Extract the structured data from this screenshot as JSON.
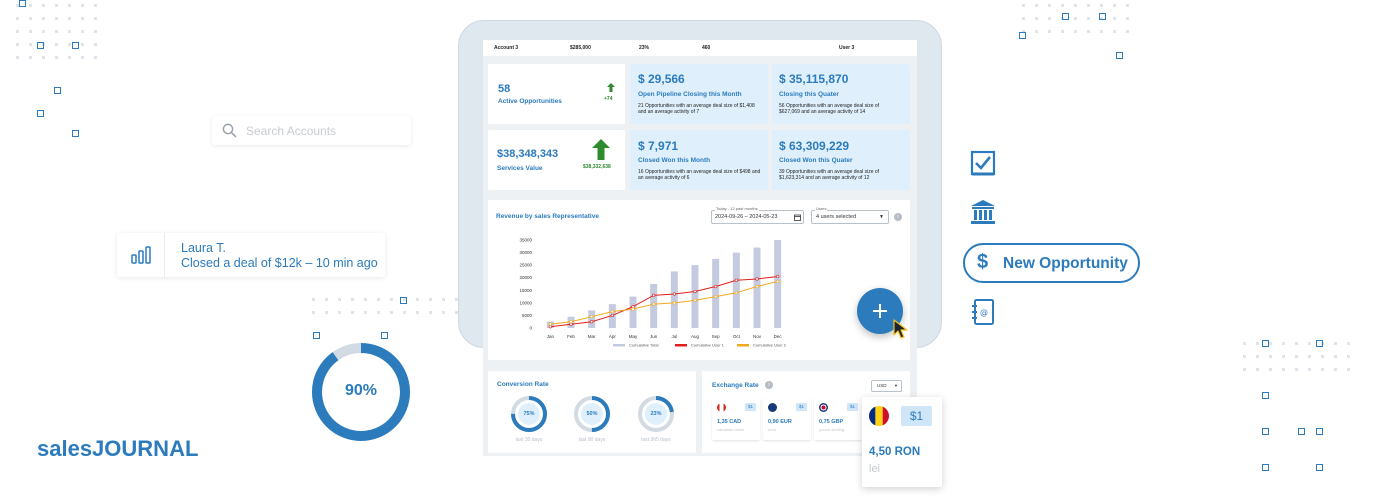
{
  "dashboard": {
    "top_row": {
      "account": "Account 3",
      "amount": "$285,000",
      "percent": "23%",
      "count": "460",
      "user": "User 3"
    },
    "kpis": [
      {
        "value": "58",
        "title": "Active Opportunities",
        "delta": "+74"
      },
      {
        "value": "$ 29,566",
        "title": "Open Pipeline Closing this Month",
        "desc": "21 Opportunities with an average deal size of $1,408 and an average activity of 7"
      },
      {
        "value": "$ 35,115,870",
        "title": "Closing this Quater",
        "desc": "56 Opportunities with an average deal size of $627,069 and an average activity of 14"
      },
      {
        "value": "$38,348,343",
        "title": "Services Value",
        "delta": "$38,332,638"
      },
      {
        "value": "$ 7,971",
        "title": "Closed Won this Month",
        "desc": "16 Opportunities with an average deal size of $498 and an average activity of 6"
      },
      {
        "value": "$ 63,309,229",
        "title": "Closed Won this Quater",
        "desc": "39 Opportunities with an average deal size of $1,623,314 and an average activity of 12"
      }
    ],
    "revenue": {
      "title": "Revenue by sales Representative",
      "date_label": "Today - 12 past months",
      "date_range": "2024-09-26 – 2024-05-23",
      "users_label": "Users",
      "users_value": "4 users selected"
    },
    "conversion": {
      "title": "Conversion Rate",
      "items": [
        {
          "value": "75%",
          "label": "last 30 days"
        },
        {
          "value": "50%",
          "label": "last 90 days"
        },
        {
          "value": "23%",
          "label": "last 365 days"
        }
      ]
    },
    "exchange": {
      "title": "Exchange Rate",
      "currency": "USD",
      "items": [
        {
          "badge": "$1",
          "value": "1,35 CAD",
          "name": "canadian dollar"
        },
        {
          "badge": "$1",
          "value": "0,90 EUR",
          "name": "euro"
        },
        {
          "badge": "$1",
          "value": "0,75 GBP",
          "name": "pound sterling"
        }
      ]
    }
  },
  "chart_data": {
    "type": "bar",
    "title": "Revenue by sales Representative",
    "categories": [
      "Jan",
      "Feb",
      "Mar",
      "Apr",
      "May",
      "Jun",
      "Jul",
      "Aug",
      "Sep",
      "Oct",
      "Nov",
      "Dec"
    ],
    "ylim": [
      0,
      35000
    ],
    "yticks": [
      0,
      5000,
      10000,
      15000,
      20000,
      25000,
      30000,
      35000
    ],
    "series": [
      {
        "name": "Cumulative Total",
        "kind": "bar",
        "color": "#c4cadf",
        "values": [
          2500,
          4500,
          7000,
          9500,
          12500,
          17500,
          22500,
          25000,
          27500,
          30000,
          32000,
          35000
        ]
      },
      {
        "name": "Cumulative User 1",
        "kind": "line",
        "color": "#e0201c",
        "values": [
          500,
          1500,
          2500,
          5000,
          8500,
          13000,
          13500,
          14500,
          16500,
          19000,
          19500,
          20500
        ]
      },
      {
        "name": "Cumulative User 2",
        "kind": "line",
        "color": "#f3a91c",
        "values": [
          1500,
          2500,
          4500,
          6500,
          7500,
          9500,
          10000,
          11000,
          12500,
          14000,
          16500,
          18500
        ]
      }
    ],
    "legend": "bottom",
    "grid": false
  },
  "floating": {
    "search_placeholder": "Search Accounts",
    "notification": {
      "name": "Laura T.",
      "message": "Closed a deal of $12k – 10 min ago"
    },
    "progress": {
      "value": 0.9,
      "label": "90%"
    },
    "brand": "salesJOURNAL",
    "new_opportunity": "New Opportunity",
    "ron": {
      "badge": "$1",
      "value": "4,50 RON",
      "name": "lei"
    }
  },
  "colors": {
    "accent": "#2b7bbd",
    "light_blue": "#dff0fc",
    "positive": "#2e8b2e"
  }
}
